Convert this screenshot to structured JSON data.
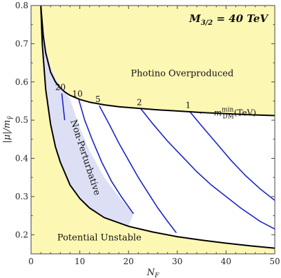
{
  "chart_data": {
    "type": "line",
    "title": "M3/2 = 40 TeV",
    "title_parts": {
      "symbol": "M",
      "sub": "3/2",
      "rest": " = 40 TeV"
    },
    "xlabel": "N",
    "xlabel_sub": "F",
    "ylabel": "|μ|/m",
    "ylabel_sub": "γ̃",
    "xlim": [
      0,
      50
    ],
    "ylim": [
      0.15,
      0.8
    ],
    "xticks": [
      "0",
      "10",
      "20",
      "30",
      "40",
      "50"
    ],
    "yticks": [
      "0.2",
      "0.3",
      "0.4",
      "0.5",
      "0.6",
      "0.7",
      "0.8"
    ],
    "grid": false,
    "colors": {
      "region_fill": "#fdf7b4",
      "nonpert_fill": "#dde0f5",
      "boundary": "#000000",
      "contour": "#1a23c9"
    },
    "regions": {
      "photino": "Photino Overproduced",
      "unstable": "Potential Unstable",
      "nonpert": "Non-Perturbative"
    },
    "legend_note": {
      "arrow": "⟵",
      "main": "m",
      "sub": "DM",
      "sup": "min",
      "unit": "(TeV)"
    },
    "boundaries": {
      "upper": {
        "x": [
          2,
          2.5,
          3,
          4,
          5,
          6,
          7,
          8,
          10,
          12,
          15,
          18,
          22,
          26,
          30,
          35,
          40,
          45,
          50
        ],
        "y": [
          0.8,
          0.72,
          0.676,
          0.626,
          0.6,
          0.584,
          0.573,
          0.565,
          0.554,
          0.547,
          0.54,
          0.535,
          0.531,
          0.527,
          0.524,
          0.52,
          0.517,
          0.514,
          0.512
        ]
      },
      "lower": {
        "x": [
          2,
          2.3,
          3,
          4,
          5,
          6,
          8,
          10,
          12,
          15,
          20,
          25,
          30,
          35,
          40,
          45,
          50
        ],
        "y": [
          0.8,
          0.7,
          0.58,
          0.49,
          0.43,
          0.39,
          0.33,
          0.295,
          0.27,
          0.245,
          0.222,
          0.207,
          0.195,
          0.186,
          0.178,
          0.171,
          0.165
        ]
      },
      "nonpert_edge": {
        "x": [
          2,
          3,
          4,
          5,
          6,
          7,
          8,
          10,
          12,
          15,
          18,
          21
        ],
        "y": [
          0.8,
          0.69,
          0.64,
          0.61,
          0.59,
          0.575,
          0.555,
          0.48,
          0.42,
          0.35,
          0.3,
          0.255
        ]
      }
    },
    "series": [
      {
        "name": "20",
        "x": [
          6.3,
          6.9
        ],
        "y": [
          0.57,
          0.5
        ]
      },
      {
        "name": "10",
        "x": [
          9.8,
          11,
          12.5,
          14.5,
          16.5,
          18.5,
          21
        ],
        "y": [
          0.553,
          0.5,
          0.45,
          0.39,
          0.34,
          0.3,
          0.255
        ]
      },
      {
        "name": "5",
        "x": [
          14,
          16,
          18,
          20,
          22,
          24,
          26,
          28,
          29.8
        ],
        "y": [
          0.538,
          0.49,
          0.44,
          0.395,
          0.35,
          0.31,
          0.27,
          0.235,
          0.205
        ]
      },
      {
        "name": "2",
        "x": [
          22.5,
          25,
          28,
          31,
          34,
          37,
          40,
          43,
          47,
          50
        ],
        "y": [
          0.53,
          0.49,
          0.445,
          0.405,
          0.365,
          0.33,
          0.3,
          0.27,
          0.235,
          0.215
        ]
      },
      {
        "name": "1",
        "x": [
          32.5,
          35,
          38,
          41,
          44,
          47,
          50
        ],
        "y": [
          0.523,
          0.485,
          0.44,
          0.395,
          0.355,
          0.32,
          0.29
        ]
      }
    ]
  }
}
